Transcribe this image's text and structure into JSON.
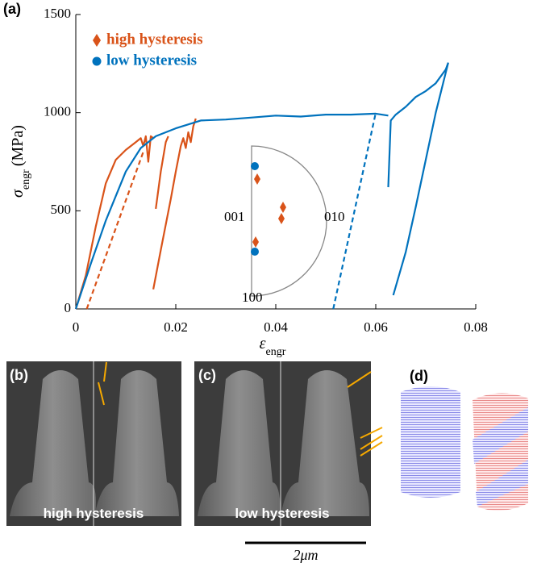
{
  "chart_data": {
    "type": "line",
    "panel_label": "(a)",
    "xlabel": [
      "ε",
      "engr"
    ],
    "ylabel": [
      "σ",
      "engr",
      "(MPa)"
    ],
    "xlim": [
      0,
      0.08
    ],
    "xticks": [
      0,
      0.02,
      0.04,
      0.06,
      0.08
    ],
    "ylim": [
      0,
      1500
    ],
    "yticks": [
      0,
      500,
      1000,
      1500
    ],
    "legend": "upper left",
    "series": [
      {
        "name": "high hysteresis",
        "color": "#d95319",
        "marker": "diamond",
        "x": [
          0,
          0.002,
          0.004,
          0.006,
          0.008,
          0.01,
          0.012,
          0.013,
          0.0135,
          0.014,
          0.0145,
          0.015,
          0.0155,
          null,
          0.016,
          0.017,
          0.018,
          0.0185,
          null,
          0.0155,
          0.017,
          0.019,
          0.02,
          0.021,
          0.0215,
          0.022,
          0.0225,
          0.023,
          0.0235,
          0.024
        ],
        "values": [
          0,
          170,
          420,
          640,
          760,
          810,
          850,
          870,
          830,
          880,
          750,
          880,
          870,
          null,
          510,
          700,
          850,
          880,
          null,
          100,
          300,
          560,
          700,
          830,
          870,
          820,
          900,
          850,
          930,
          970
        ],
        "unloading": {
          "x": [
            0.0022,
            0.0135
          ],
          "values": [
            0,
            800
          ]
        }
      },
      {
        "name": "low hysteresis",
        "color": "#0072bd",
        "marker": "circle",
        "x": [
          0,
          0.003,
          0.006,
          0.01,
          0.013,
          0.016,
          0.02,
          0.025,
          0.03,
          0.035,
          0.04,
          0.045,
          0.05,
          0.055,
          0.06,
          0.0625,
          null,
          0.0625,
          0.063,
          0.064,
          0.066,
          0.068,
          0.07,
          0.072,
          0.074,
          0.0745,
          null,
          0.0745,
          0.072,
          0.07,
          0.068,
          0.066,
          0.0635
        ],
        "values": [
          0,
          230,
          450,
          700,
          820,
          880,
          920,
          960,
          965,
          975,
          985,
          980,
          990,
          990,
          995,
          985,
          null,
          620,
          960,
          990,
          1030,
          1080,
          1110,
          1150,
          1220,
          1255,
          null,
          1255,
          1000,
          760,
          520,
          290,
          70
        ],
        "unloading": {
          "x": [
            0.0515,
            0.06
          ],
          "values": [
            0,
            1000
          ]
        }
      }
    ],
    "inset_labels": [
      "001",
      "010",
      "100"
    ]
  },
  "panel_labels": [
    "(b)",
    "(c)",
    "(d)"
  ],
  "image_captions": [
    "high hysteresis",
    "low hysteresis"
  ],
  "scale_bar": "2μm"
}
